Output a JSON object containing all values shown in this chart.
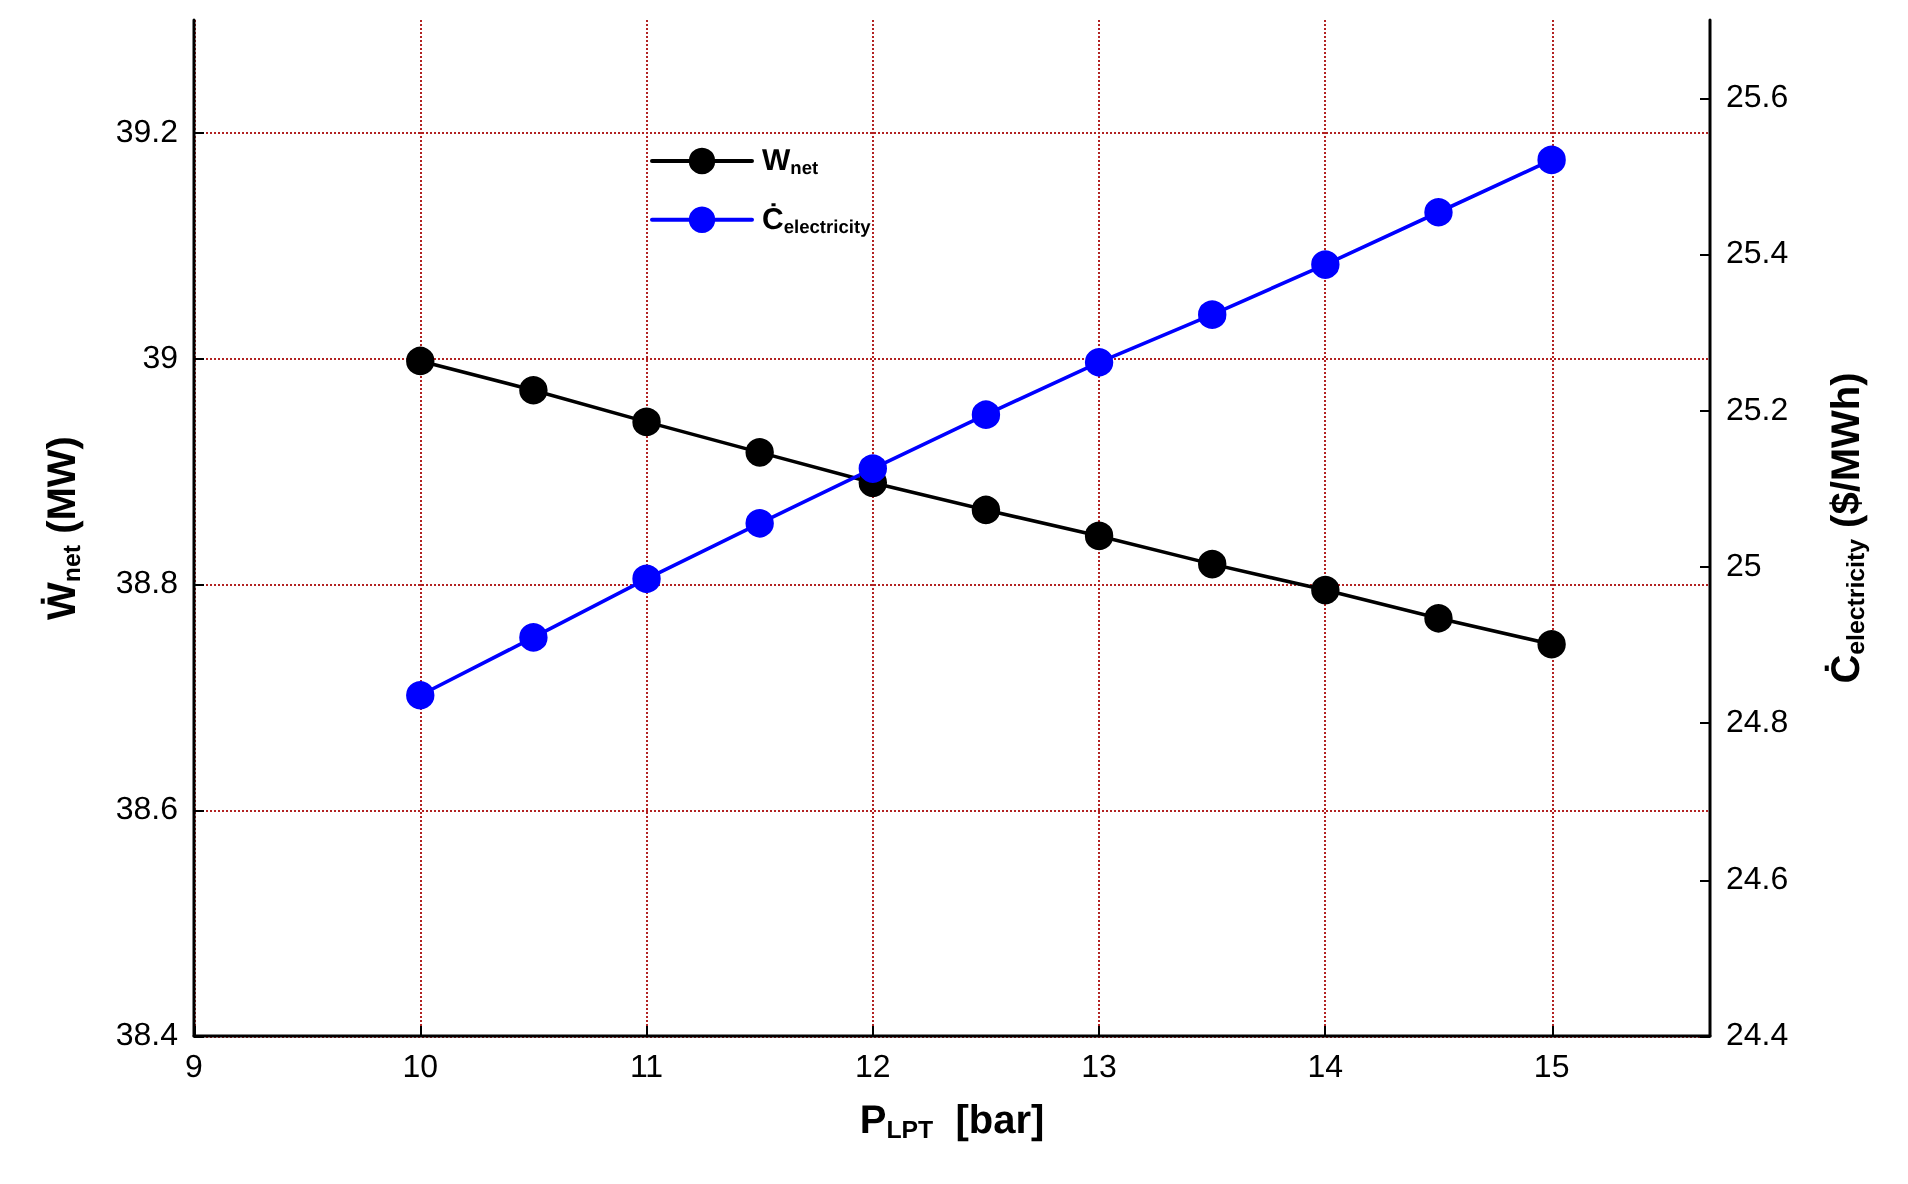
{
  "chart_data": {
    "type": "line",
    "xlabel": "P$_{LPT}$  [bar]",
    "ylabel": "Ẇ$_{net}$ (MW)",
    "y2label": "Ċ$_{electricity}$ ($/MWh)",
    "x": [
      10,
      10.5,
      11,
      11.5,
      12,
      12.5,
      13,
      13.5,
      14,
      14.5,
      15
    ],
    "series": [
      {
        "name": "W$_{net}$",
        "color": "#000000",
        "values": [
          38.998,
          38.972,
          38.944,
          38.917,
          38.89,
          38.866,
          38.843,
          38.818,
          38.795,
          38.77,
          38.747
        ]
      },
      {
        "name": "Ċ$_{electricity}$",
        "color": "#0000ff",
        "axis": "y2",
        "values": [
          24.836,
          24.91,
          24.985,
          25.056,
          25.126,
          25.195,
          25.262,
          25.323,
          25.387,
          25.454,
          25.521
        ]
      }
    ],
    "xlim": [
      9,
      15.7
    ],
    "xticks": [
      9,
      10,
      11,
      12,
      13,
      14,
      15
    ],
    "ylim": [
      38.4,
      39.3
    ],
    "yticks": [
      38.4,
      38.6,
      38.8,
      39,
      39.2
    ],
    "y2lim": [
      24.4,
      25.7
    ],
    "y2ticks": [
      24.4,
      24.6,
      24.8,
      25,
      25.2,
      25.4,
      25.6
    ],
    "grid": true,
    "legend": "top left",
    "marker": "circle",
    "line_style": "solid"
  }
}
